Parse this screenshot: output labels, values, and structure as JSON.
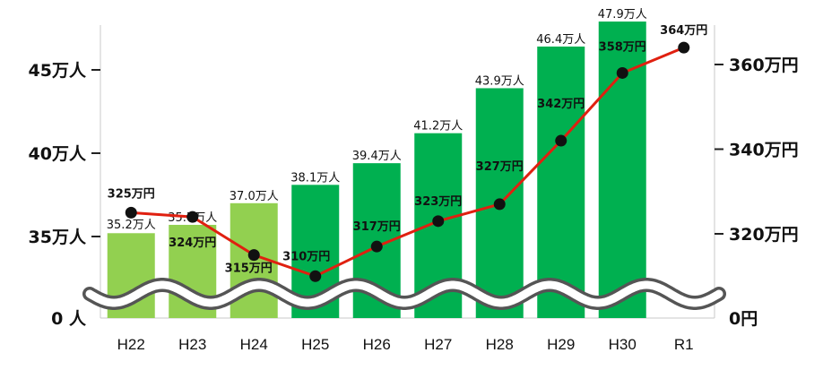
{
  "chart_data": {
    "type": "bar",
    "categories": [
      "H22",
      "H23",
      "H24",
      "H25",
      "H26",
      "H27",
      "H28",
      "H29",
      "H30",
      "R1"
    ],
    "series": [
      {
        "type": "bar",
        "axis": "left",
        "values": [
          35.2,
          35.7,
          37.0,
          38.1,
          39.4,
          41.2,
          43.9,
          46.4,
          47.9,
          null
        ],
        "labels": [
          "35.2万人",
          "35.7万人",
          "37.0万人",
          "38.1万人",
          "39.4万人",
          "41.2万人",
          "43.9万人",
          "46.4万人",
          "47.9万人",
          ""
        ],
        "colors": [
          "#92d050",
          "#92d050",
          "#92d050",
          "#00b050",
          "#00b050",
          "#00b050",
          "#00b050",
          "#00b050",
          "#00b050",
          "#00b050"
        ]
      },
      {
        "type": "line",
        "axis": "right",
        "values": [
          325,
          324,
          315,
          310,
          317,
          323,
          327,
          342,
          358,
          364
        ],
        "labels": [
          "325万円",
          "324万円",
          "315万円",
          "310万円",
          "317万円",
          "323万円",
          "327万円",
          "342万円",
          "358万円",
          "364万円"
        ],
        "color": "#e02010"
      }
    ],
    "left_axis": {
      "ticks": [
        0,
        35,
        40,
        45
      ],
      "labels": [
        "0 人",
        "35万人",
        "40万人",
        "45万人"
      ],
      "range": [
        30,
        49
      ],
      "broken": true
    },
    "right_axis": {
      "ticks": [
        0,
        320,
        340,
        360
      ],
      "labels": [
        "0円",
        "320万円",
        "340万円",
        "360万円"
      ],
      "range": [
        300,
        380
      ],
      "broken": true
    },
    "title": "",
    "xlabel": "",
    "ylabel": "",
    "grid": false,
    "legend": "none"
  }
}
